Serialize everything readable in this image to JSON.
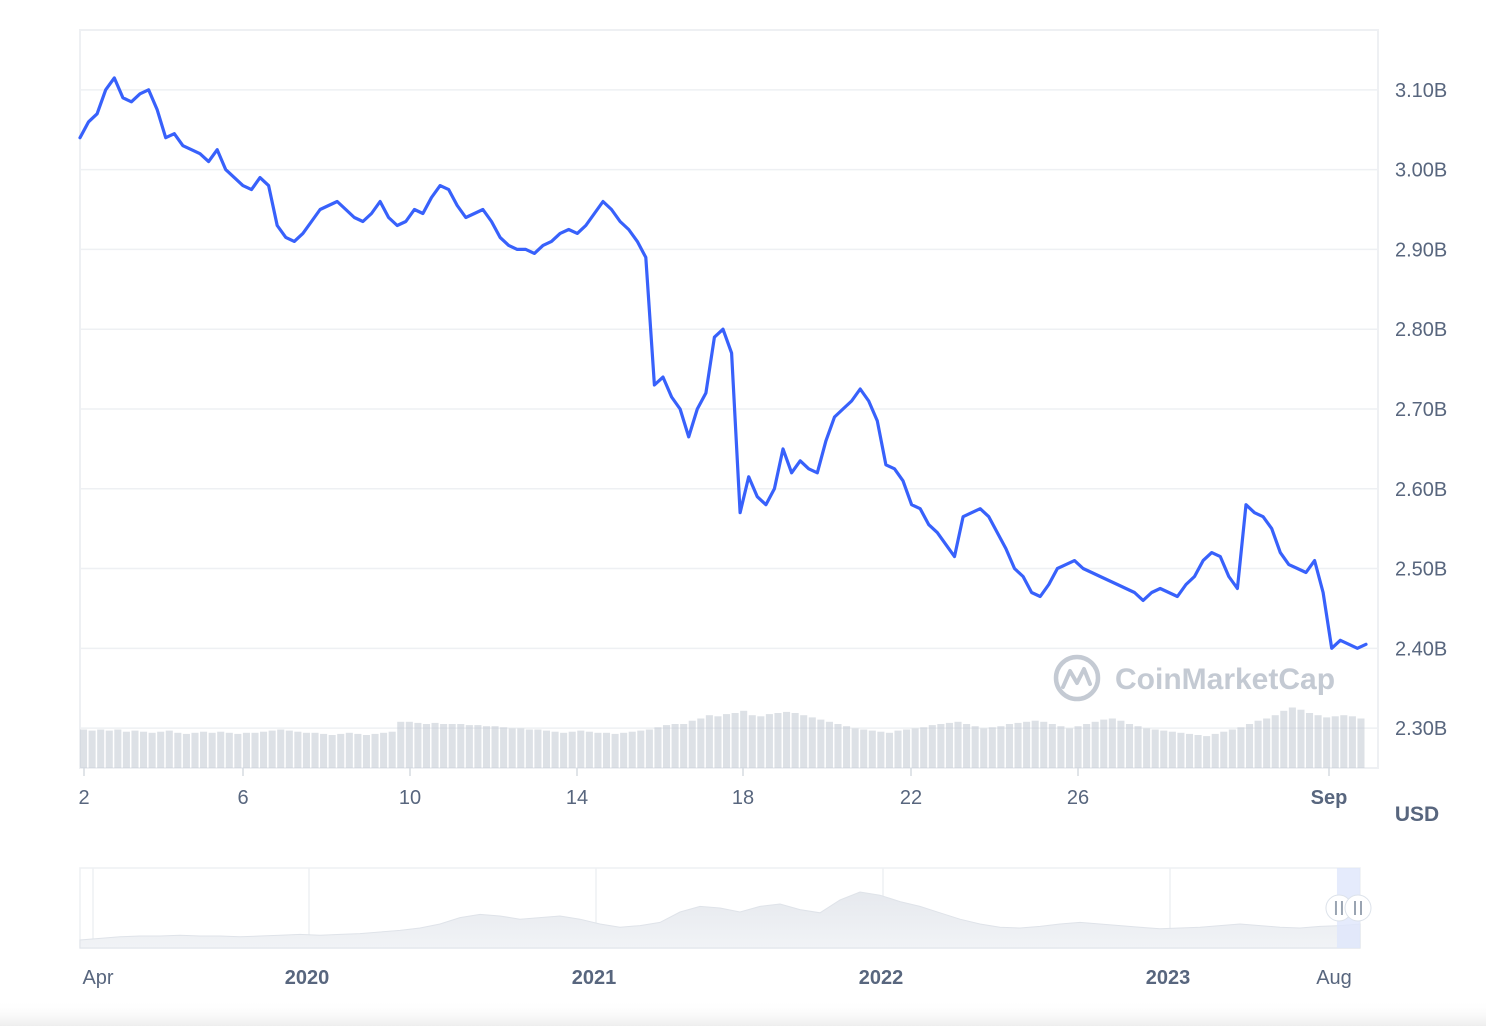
{
  "chart_data": {
    "type": "line",
    "title": "",
    "xlabel": "",
    "ylabel": "",
    "unit_label": "USD",
    "series": [
      {
        "name": "",
        "color": "#3861fb",
        "values": [
          3.04,
          3.06,
          3.07,
          3.1,
          3.115,
          3.09,
          3.085,
          3.095,
          3.1,
          3.075,
          3.04,
          3.045,
          3.03,
          3.025,
          3.02,
          3.01,
          3.025,
          3.0,
          2.99,
          2.98,
          2.975,
          2.99,
          2.98,
          2.93,
          2.915,
          2.91,
          2.92,
          2.935,
          2.95,
          2.955,
          2.96,
          2.95,
          2.94,
          2.935,
          2.945,
          2.96,
          2.94,
          2.93,
          2.935,
          2.95,
          2.945,
          2.965,
          2.98,
          2.975,
          2.955,
          2.94,
          2.945,
          2.95,
          2.935,
          2.915,
          2.905,
          2.9,
          2.9,
          2.895,
          2.905,
          2.91,
          2.92,
          2.925,
          2.92,
          2.93,
          2.945,
          2.96,
          2.95,
          2.935,
          2.925,
          2.91,
          2.89,
          2.73,
          2.74,
          2.715,
          2.7,
          2.665,
          2.7,
          2.72,
          2.79,
          2.8,
          2.77,
          2.57,
          2.615,
          2.59,
          2.58,
          2.6,
          2.65,
          2.62,
          2.635,
          2.625,
          2.62,
          2.66,
          2.69,
          2.7,
          2.71,
          2.725,
          2.71,
          2.685,
          2.63,
          2.625,
          2.61,
          2.58,
          2.575,
          2.555,
          2.545,
          2.53,
          2.515,
          2.565,
          2.57,
          2.575,
          2.565,
          2.545,
          2.525,
          2.5,
          2.49,
          2.47,
          2.465,
          2.48,
          2.5,
          2.505,
          2.51,
          2.5,
          2.495,
          2.49,
          2.485,
          2.48,
          2.475,
          2.47,
          2.46,
          2.47,
          2.475,
          2.47,
          2.465,
          2.48,
          2.49,
          2.51,
          2.52,
          2.515,
          2.49,
          2.475,
          2.58,
          2.57,
          2.565,
          2.55,
          2.52,
          2.505,
          2.5,
          2.495,
          2.51,
          2.47,
          2.4,
          2.41,
          2.405,
          2.4,
          2.405
        ]
      }
    ],
    "x_tick_labels": [
      "2",
      "6",
      "10",
      "14",
      "18",
      "22",
      "26",
      "Sep"
    ],
    "y_tick_labels": [
      "3.10B",
      "3.00B",
      "2.90B",
      "2.80B",
      "2.70B",
      "2.60B",
      "2.50B",
      "2.40B",
      "2.30B"
    ],
    "ylim": [
      2.25,
      3.175
    ],
    "volume": {
      "color": "#c1c8d2",
      "values": [
        0.35,
        0.34,
        0.35,
        0.34,
        0.35,
        0.33,
        0.34,
        0.33,
        0.32,
        0.33,
        0.34,
        0.32,
        0.31,
        0.32,
        0.33,
        0.32,
        0.33,
        0.32,
        0.31,
        0.32,
        0.32,
        0.33,
        0.34,
        0.35,
        0.34,
        0.33,
        0.32,
        0.32,
        0.31,
        0.3,
        0.31,
        0.32,
        0.31,
        0.3,
        0.31,
        0.32,
        0.33,
        0.42,
        0.42,
        0.41,
        0.4,
        0.41,
        0.4,
        0.4,
        0.4,
        0.39,
        0.39,
        0.38,
        0.38,
        0.37,
        0.36,
        0.36,
        0.35,
        0.35,
        0.34,
        0.33,
        0.32,
        0.33,
        0.34,
        0.33,
        0.32,
        0.32,
        0.31,
        0.32,
        0.33,
        0.34,
        0.35,
        0.37,
        0.39,
        0.4,
        0.4,
        0.43,
        0.45,
        0.48,
        0.47,
        0.49,
        0.5,
        0.52,
        0.48,
        0.47,
        0.49,
        0.5,
        0.51,
        0.5,
        0.48,
        0.46,
        0.44,
        0.42,
        0.4,
        0.38,
        0.36,
        0.35,
        0.34,
        0.33,
        0.32,
        0.34,
        0.35,
        0.36,
        0.37,
        0.39,
        0.4,
        0.41,
        0.42,
        0.4,
        0.38,
        0.36,
        0.37,
        0.38,
        0.4,
        0.41,
        0.42,
        0.43,
        0.42,
        0.4,
        0.38,
        0.36,
        0.38,
        0.4,
        0.42,
        0.44,
        0.45,
        0.43,
        0.4,
        0.38,
        0.36,
        0.35,
        0.34,
        0.33,
        0.32,
        0.31,
        0.3,
        0.29,
        0.31,
        0.33,
        0.35,
        0.37,
        0.4,
        0.43,
        0.45,
        0.48,
        0.52,
        0.55,
        0.53,
        0.5,
        0.48,
        0.46,
        0.47,
        0.48,
        0.47,
        0.45
      ]
    }
  },
  "navigator": {
    "labels": [
      "Apr",
      "2020",
      "2021",
      "2022",
      "2023",
      "Aug"
    ],
    "bold": [
      false,
      true,
      true,
      true,
      true,
      false
    ],
    "area_values": [
      0.1,
      0.12,
      0.14,
      0.15,
      0.15,
      0.16,
      0.15,
      0.15,
      0.14,
      0.15,
      0.16,
      0.17,
      0.16,
      0.17,
      0.18,
      0.2,
      0.22,
      0.25,
      0.3,
      0.38,
      0.42,
      0.4,
      0.36,
      0.38,
      0.4,
      0.36,
      0.3,
      0.26,
      0.28,
      0.32,
      0.45,
      0.52,
      0.5,
      0.45,
      0.52,
      0.55,
      0.48,
      0.44,
      0.6,
      0.7,
      0.66,
      0.58,
      0.52,
      0.44,
      0.36,
      0.3,
      0.26,
      0.25,
      0.27,
      0.3,
      0.32,
      0.3,
      0.28,
      0.26,
      0.24,
      0.25,
      0.26,
      0.28,
      0.3,
      0.28,
      0.26,
      0.25,
      0.27,
      0.28,
      0.3
    ],
    "selection_fraction": 0.018
  },
  "watermark": {
    "text": "CoinMarketCap"
  }
}
